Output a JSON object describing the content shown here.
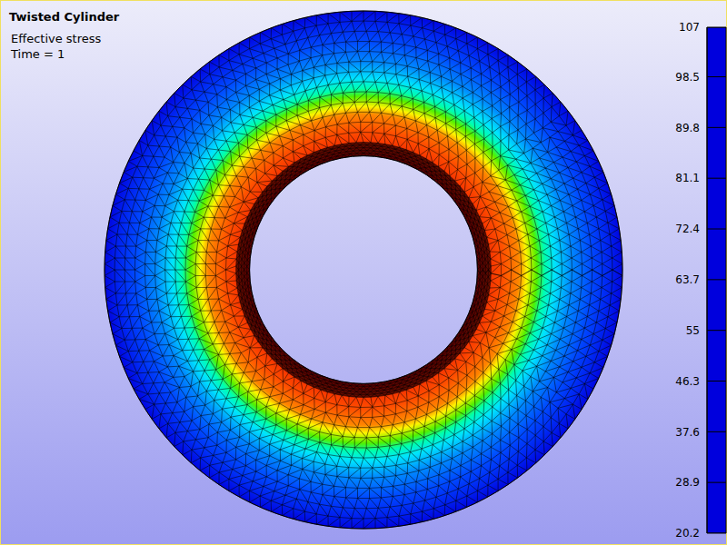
{
  "chart_data": {
    "type": "contour",
    "title": "Twisted Cylinder",
    "subtitle": "Effective stress",
    "annotation": "Time = 1",
    "radius": [
      0.44,
      0.49,
      0.54,
      0.6,
      0.63,
      0.67,
      0.7,
      0.74,
      0.8,
      0.88,
      0.95,
      1.0
    ],
    "values": [
      107,
      100,
      97,
      92,
      82,
      68,
      55,
      45,
      37,
      30,
      25,
      21
    ],
    "colorbar": {
      "range": [
        20.2,
        107
      ],
      "ticks": [
        20.2,
        28.9,
        37.6,
        46.3,
        55,
        63.7,
        72.4,
        81.1,
        89.8,
        98.5,
        107
      ]
    }
  }
}
